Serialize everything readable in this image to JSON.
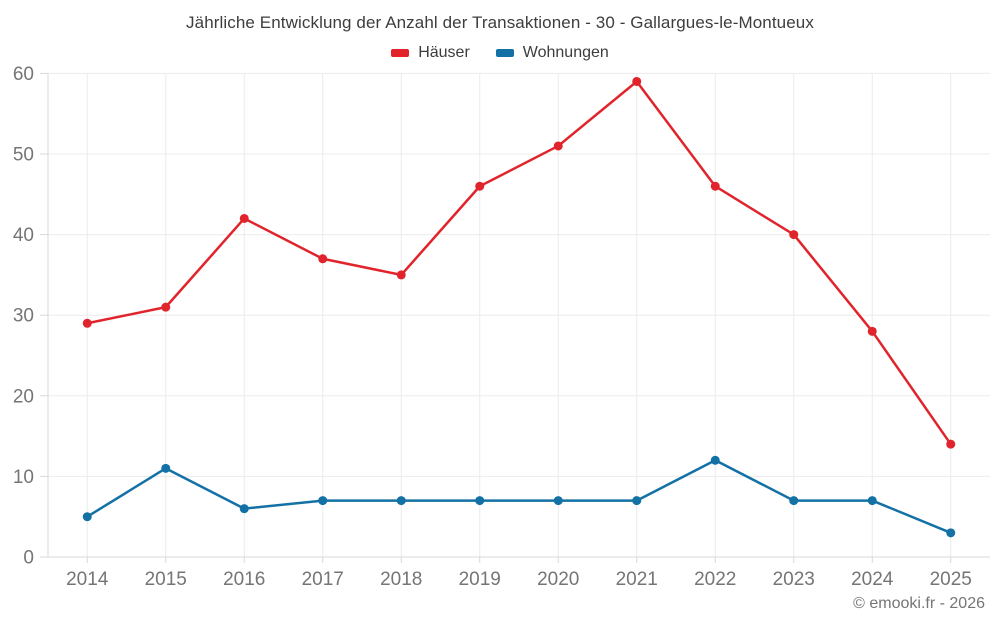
{
  "title": "Jährliche Entwicklung der Anzahl der Transaktionen - 30 - Gallargues-le-Montueux",
  "footer": {
    "watermark": "© emooki.fr - 2026"
  },
  "chart_data": {
    "type": "line",
    "title": "Jährliche Entwicklung der Anzahl der Transaktionen - 30 - Gallargues-le-Montueux",
    "categories": [
      "2014",
      "2015",
      "2016",
      "2017",
      "2018",
      "2019",
      "2020",
      "2021",
      "2022",
      "2023",
      "2024",
      "2025"
    ],
    "series": [
      {
        "name": "Häuser",
        "color": "#e1242b",
        "values": [
          29,
          31,
          42,
          37,
          35,
          46,
          51,
          59,
          46,
          40,
          28,
          14
        ]
      },
      {
        "name": "Wohnungen",
        "color": "#1371a6",
        "values": [
          5,
          11,
          6,
          7,
          7,
          7,
          7,
          7,
          12,
          7,
          7,
          3
        ]
      }
    ],
    "xlabel": "",
    "ylabel": "",
    "ylim": [
      0,
      60
    ],
    "y_ticks": [
      0,
      10,
      20,
      30,
      40,
      50,
      60
    ],
    "grid": true,
    "legend_position": "top"
  },
  "style": {
    "background": "#ffffff",
    "grid_color": "#ececec",
    "axis_color": "#d9d9d9",
    "tick_label_color": "#757575",
    "title_color": "#3d3d3d",
    "marker_radius": 4.5,
    "line_width": 2.5
  }
}
